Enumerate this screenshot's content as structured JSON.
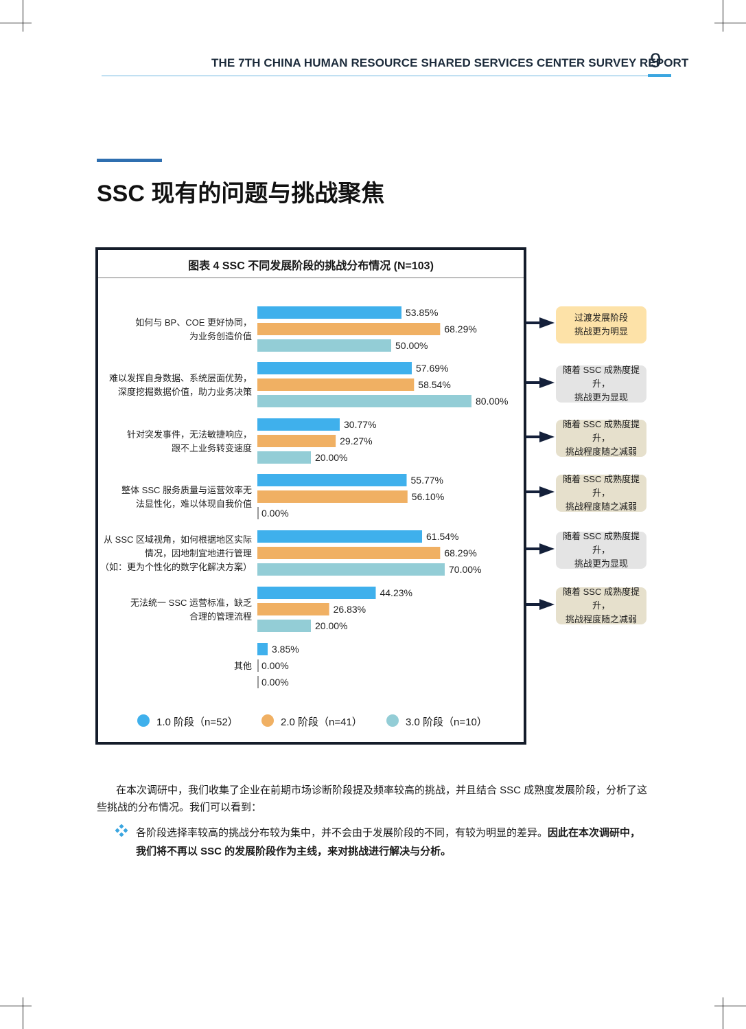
{
  "header": {
    "running_title": "THE 7TH CHINA HUMAN RESOURCE SHARED SERVICES CENTER SURVEY REPORT",
    "page_number": "9"
  },
  "section": {
    "title": "SSC 现有的问题与挑战聚焦"
  },
  "chart_data": {
    "type": "bar",
    "orientation": "horizontal",
    "title": "图表 4 SSC 不同发展阶段的挑战分布情况 (N=103)",
    "categories": [
      [
        "如何与 BP、COE 更好协同，",
        "为业务创造价值"
      ],
      [
        "难以发挥自身数据、系统层面优势，",
        "深度挖掘数据价值，助力业务决策"
      ],
      [
        "针对突发事件，无法敏捷响应，",
        "跟不上业务转变速度"
      ],
      [
        "整体 SSC 服务质量与运营效率无",
        "法显性化，难以体现自我价值"
      ],
      [
        "从 SSC 区域视角，如何根据地区实际",
        "情况，因地制宜地进行管理",
        "（如：更为个性化的数字化解决方案）"
      ],
      [
        "无法统一 SSC 运营标准，缺乏",
        "合理的管理流程"
      ],
      [
        "其他"
      ]
    ],
    "series": [
      {
        "name": "1.0 阶段（n=52）",
        "color": "#3fb0ec",
        "values": [
          53.85,
          57.69,
          30.77,
          55.77,
          61.54,
          44.23,
          3.85
        ],
        "labels": [
          "53.85%",
          "57.69%",
          "30.77%",
          "55.77%",
          "61.54%",
          "44.23%",
          "3.85%"
        ]
      },
      {
        "name": "2.0 阶段（n=41）",
        "color": "#f0b063",
        "values": [
          68.29,
          58.54,
          29.27,
          56.1,
          68.29,
          26.83,
          0.0
        ],
        "labels": [
          "68.29%",
          "58.54%",
          "29.27%",
          "56.10%",
          "68.29%",
          "26.83%",
          "0.00%"
        ]
      },
      {
        "name": "3.0 阶段（n=10）",
        "color": "#93cdd6",
        "values": [
          50.0,
          80.0,
          20.0,
          0.0,
          70.0,
          20.0,
          0.0
        ],
        "labels": [
          "50.00%",
          "80.00%",
          "20.00%",
          "0.00%",
          "70.00%",
          "20.00%",
          "0.00%"
        ]
      }
    ],
    "xlim": [
      0,
      100
    ],
    "legend_position": "bottom",
    "grid": false
  },
  "annotations": [
    {
      "text": "过渡发展阶段\n挑战更为明显",
      "bg": "#fde2a8"
    },
    {
      "text": "随着 SSC 成熟度提升，\n挑战更为显现",
      "bg": "#e4e4e4"
    },
    {
      "text": "随着 SSC 成熟度提升，\n挑战程度随之减弱",
      "bg": "#e6e0cc"
    },
    {
      "text": "随着 SSC 成熟度提升，\n挑战程度随之减弱",
      "bg": "#e6e0cc"
    },
    {
      "text": "随着 SSC 成熟度提升，\n挑战更为显现",
      "bg": "#e4e4e4"
    },
    {
      "text": "随着 SSC 成熟度提升，\n挑战程度随之减弱",
      "bg": "#e6e0cc"
    }
  ],
  "body": {
    "paragraph": "在本次调研中，我们收集了企业在前期市场诊断阶段提及频率较高的挑战，并且结合 SSC 成熟度发展阶段，分析了这些挑战的分布情况。我们可以看到：",
    "bullet_normal": "各阶段选择率较高的挑战分布较为集中，并不会由于发展阶段的不同，有较为明显的差异。",
    "bullet_bold": "因此在本次调研中，我们将不再以 SSC 的发展阶段作为主线，来对挑战进行解决与分析。"
  },
  "colors": {
    "title_accent": "#2f6fb0",
    "header_rule": "#69b3e0",
    "chart_border": "#141c2a",
    "arrow": "#14203a"
  }
}
